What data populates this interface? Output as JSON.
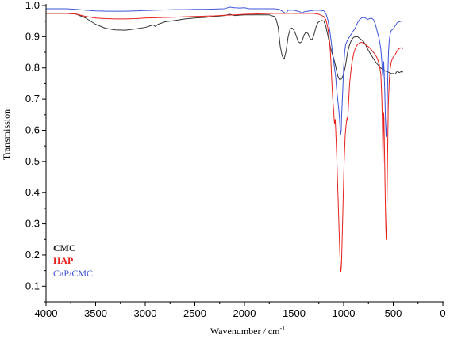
{
  "chart_data": {
    "type": "line",
    "title": "",
    "xlabel": "Wavenumber / cm-1",
    "xlabel_main": "Wavenumber / cm",
    "xlabel_sup": "-1",
    "ylabel": "Transmission",
    "xlim": [
      4000,
      0
    ],
    "ylim": [
      0.05,
      1.0
    ],
    "x_reversed": true,
    "grid": false,
    "legend_position": "lower-left",
    "x_ticks": [
      4000,
      3500,
      3000,
      2500,
      2000,
      1500,
      1000,
      500,
      0
    ],
    "x_tick_labels": [
      "4000",
      "3500",
      "3000",
      "2500",
      "2000",
      "1500",
      "1000",
      "500",
      "0"
    ],
    "y_ticks": [
      0.1,
      0.2,
      0.3,
      0.4,
      0.5,
      0.6,
      0.7,
      0.8,
      0.9,
      1.0
    ],
    "y_tick_labels": [
      "0.1",
      "0.2",
      "0.3",
      "0.4",
      "0.5",
      "0.6",
      "0.7",
      "0.8",
      "0.9",
      "1.0"
    ],
    "series": [
      {
        "name": "CMC",
        "color": "#333333",
        "points": [
          [
            4000,
            0.975
          ],
          [
            3800,
            0.975
          ],
          [
            3700,
            0.973
          ],
          [
            3600,
            0.96
          ],
          [
            3500,
            0.94
          ],
          [
            3400,
            0.927
          ],
          [
            3300,
            0.922
          ],
          [
            3200,
            0.921
          ],
          [
            3100,
            0.925
          ],
          [
            3000,
            0.93
          ],
          [
            2950,
            0.935
          ],
          [
            2920,
            0.938
          ],
          [
            2900,
            0.933
          ],
          [
            2870,
            0.94
          ],
          [
            2800,
            0.948
          ],
          [
            2700,
            0.952
          ],
          [
            2600,
            0.957
          ],
          [
            2500,
            0.96
          ],
          [
            2400,
            0.962
          ],
          [
            2300,
            0.965
          ],
          [
            2200,
            0.968
          ],
          [
            2150,
            0.972
          ],
          [
            2100,
            0.968
          ],
          [
            2000,
            0.97
          ],
          [
            1900,
            0.97
          ],
          [
            1800,
            0.97
          ],
          [
            1750,
            0.97
          ],
          [
            1700,
            0.965
          ],
          [
            1680,
            0.955
          ],
          [
            1660,
            0.93
          ],
          [
            1640,
            0.87
          ],
          [
            1620,
            0.838
          ],
          [
            1600,
            0.828
          ],
          [
            1580,
            0.855
          ],
          [
            1560,
            0.9
          ],
          [
            1540,
            0.925
          ],
          [
            1520,
            0.928
          ],
          [
            1500,
            0.92
          ],
          [
            1480,
            0.905
          ],
          [
            1460,
            0.885
          ],
          [
            1440,
            0.88
          ],
          [
            1420,
            0.885
          ],
          [
            1400,
            0.905
          ],
          [
            1380,
            0.915
          ],
          [
            1360,
            0.91
          ],
          [
            1340,
            0.895
          ],
          [
            1320,
            0.89
          ],
          [
            1300,
            0.905
          ],
          [
            1280,
            0.93
          ],
          [
            1260,
            0.945
          ],
          [
            1240,
            0.95
          ],
          [
            1220,
            0.952
          ],
          [
            1200,
            0.95
          ],
          [
            1180,
            0.935
          ],
          [
            1160,
            0.905
          ],
          [
            1140,
            0.875
          ],
          [
            1120,
            0.85
          ],
          [
            1100,
            0.83
          ],
          [
            1080,
            0.805
          ],
          [
            1060,
            0.775
          ],
          [
            1040,
            0.762
          ],
          [
            1020,
            0.765
          ],
          [
            1000,
            0.78
          ],
          [
            980,
            0.81
          ],
          [
            960,
            0.85
          ],
          [
            940,
            0.875
          ],
          [
            920,
            0.89
          ],
          [
            900,
            0.898
          ],
          [
            880,
            0.9
          ],
          [
            860,
            0.9
          ],
          [
            840,
            0.895
          ],
          [
            820,
            0.89
          ],
          [
            800,
            0.885
          ],
          [
            780,
            0.875
          ],
          [
            760,
            0.862
          ],
          [
            740,
            0.85
          ],
          [
            720,
            0.84
          ],
          [
            700,
            0.83
          ],
          [
            680,
            0.82
          ],
          [
            660,
            0.812
          ],
          [
            640,
            0.805
          ],
          [
            620,
            0.798
          ],
          [
            600,
            0.795
          ],
          [
            580,
            0.79
          ],
          [
            560,
            0.788
          ],
          [
            540,
            0.785
          ],
          [
            520,
            0.782
          ],
          [
            500,
            0.782
          ],
          [
            480,
            0.78
          ],
          [
            460,
            0.79
          ],
          [
            440,
            0.785
          ],
          [
            420,
            0.788
          ],
          [
            400,
            0.787
          ]
        ]
      },
      {
        "name": "HAP",
        "color": "#e8201c",
        "points": [
          [
            4000,
            0.975
          ],
          [
            3800,
            0.975
          ],
          [
            3700,
            0.973
          ],
          [
            3600,
            0.965
          ],
          [
            3500,
            0.96
          ],
          [
            3400,
            0.958
          ],
          [
            3300,
            0.957
          ],
          [
            3200,
            0.957
          ],
          [
            3100,
            0.958
          ],
          [
            3000,
            0.96
          ],
          [
            2900,
            0.961
          ],
          [
            2800,
            0.962
          ],
          [
            2700,
            0.963
          ],
          [
            2600,
            0.964
          ],
          [
            2500,
            0.965
          ],
          [
            2400,
            0.966
          ],
          [
            2300,
            0.967
          ],
          [
            2200,
            0.969
          ],
          [
            2100,
            0.97
          ],
          [
            2000,
            0.972
          ],
          [
            1900,
            0.973
          ],
          [
            1800,
            0.974
          ],
          [
            1700,
            0.975
          ],
          [
            1600,
            0.975
          ],
          [
            1500,
            0.975
          ],
          [
            1400,
            0.975
          ],
          [
            1300,
            0.975
          ],
          [
            1250,
            0.972
          ],
          [
            1200,
            0.965
          ],
          [
            1180,
            0.955
          ],
          [
            1160,
            0.93
          ],
          [
            1140,
            0.88
          ],
          [
            1130,
            0.83
          ],
          [
            1120,
            0.76
          ],
          [
            1110,
            0.7
          ],
          [
            1100,
            0.66
          ],
          [
            1095,
            0.63
          ],
          [
            1090,
            0.62
          ],
          [
            1085,
            0.635
          ],
          [
            1080,
            0.6
          ],
          [
            1070,
            0.52
          ],
          [
            1060,
            0.42
          ],
          [
            1050,
            0.32
          ],
          [
            1040,
            0.22
          ],
          [
            1033,
            0.16
          ],
          [
            1028,
            0.145
          ],
          [
            1022,
            0.17
          ],
          [
            1015,
            0.25
          ],
          [
            1005,
            0.38
          ],
          [
            995,
            0.5
          ],
          [
            985,
            0.58
          ],
          [
            975,
            0.62
          ],
          [
            965,
            0.64
          ],
          [
            962,
            0.632
          ],
          [
            958,
            0.64
          ],
          [
            950,
            0.69
          ],
          [
            940,
            0.75
          ],
          [
            920,
            0.81
          ],
          [
            900,
            0.845
          ],
          [
            880,
            0.865
          ],
          [
            860,
            0.875
          ],
          [
            840,
            0.88
          ],
          [
            820,
            0.882
          ],
          [
            800,
            0.88
          ],
          [
            780,
            0.875
          ],
          [
            760,
            0.87
          ],
          [
            740,
            0.865
          ],
          [
            720,
            0.858
          ],
          [
            700,
            0.85
          ],
          [
            680,
            0.842
          ],
          [
            660,
            0.83
          ],
          [
            640,
            0.81
          ],
          [
            625,
            0.78
          ],
          [
            615,
            0.7
          ],
          [
            608,
            0.6
          ],
          [
            603,
            0.495
          ],
          [
            600,
            0.6
          ],
          [
            597,
            0.655
          ],
          [
            594,
            0.64
          ],
          [
            590,
            0.57
          ],
          [
            585,
            0.47
          ],
          [
            580,
            0.37
          ],
          [
            575,
            0.29
          ],
          [
            571,
            0.25
          ],
          [
            567,
            0.28
          ],
          [
            562,
            0.4
          ],
          [
            556,
            0.55
          ],
          [
            550,
            0.68
          ],
          [
            540,
            0.76
          ],
          [
            530,
            0.8
          ],
          [
            520,
            0.82
          ],
          [
            500,
            0.835
          ],
          [
            480,
            0.843
          ],
          [
            460,
            0.855
          ],
          [
            440,
            0.862
          ],
          [
            420,
            0.865
          ],
          [
            400,
            0.862
          ]
        ]
      },
      {
        "name": "CaP/CMC",
        "color": "#3e55d9",
        "points": [
          [
            4000,
            0.99
          ],
          [
            3800,
            0.99
          ],
          [
            3700,
            0.988
          ],
          [
            3600,
            0.985
          ],
          [
            3500,
            0.983
          ],
          [
            3400,
            0.982
          ],
          [
            3300,
            0.982
          ],
          [
            3200,
            0.982
          ],
          [
            3100,
            0.983
          ],
          [
            3000,
            0.984
          ],
          [
            2900,
            0.985
          ],
          [
            2800,
            0.986
          ],
          [
            2700,
            0.987
          ],
          [
            2600,
            0.987
          ],
          [
            2500,
            0.988
          ],
          [
            2400,
            0.988
          ],
          [
            2300,
            0.989
          ],
          [
            2200,
            0.99
          ],
          [
            2150,
            0.995
          ],
          [
            2100,
            0.993
          ],
          [
            2050,
            0.992
          ],
          [
            2000,
            0.993
          ],
          [
            1950,
            0.99
          ],
          [
            1900,
            0.99
          ],
          [
            1800,
            0.99
          ],
          [
            1700,
            0.99
          ],
          [
            1650,
            0.988
          ],
          [
            1600,
            0.978
          ],
          [
            1580,
            0.975
          ],
          [
            1560,
            0.985
          ],
          [
            1500,
            0.985
          ],
          [
            1440,
            0.98
          ],
          [
            1420,
            0.975
          ],
          [
            1400,
            0.98
          ],
          [
            1300,
            0.985
          ],
          [
            1250,
            0.985
          ],
          [
            1200,
            0.983
          ],
          [
            1180,
            0.975
          ],
          [
            1160,
            0.955
          ],
          [
            1140,
            0.92
          ],
          [
            1120,
            0.87
          ],
          [
            1100,
            0.82
          ],
          [
            1080,
            0.77
          ],
          [
            1070,
            0.73
          ],
          [
            1060,
            0.7
          ],
          [
            1050,
            0.67
          ],
          [
            1040,
            0.63
          ],
          [
            1035,
            0.6
          ],
          [
            1030,
            0.585
          ],
          [
            1025,
            0.6
          ],
          [
            1020,
            0.65
          ],
          [
            1010,
            0.72
          ],
          [
            1000,
            0.8
          ],
          [
            990,
            0.85
          ],
          [
            980,
            0.875
          ],
          [
            960,
            0.89
          ],
          [
            940,
            0.9
          ],
          [
            920,
            0.91
          ],
          [
            900,
            0.92
          ],
          [
            880,
            0.93
          ],
          [
            860,
            0.945
          ],
          [
            840,
            0.955
          ],
          [
            820,
            0.96
          ],
          [
            800,
            0.962
          ],
          [
            780,
            0.96
          ],
          [
            760,
            0.955
          ],
          [
            740,
            0.958
          ],
          [
            720,
            0.96
          ],
          [
            700,
            0.955
          ],
          [
            680,
            0.94
          ],
          [
            660,
            0.915
          ],
          [
            640,
            0.89
          ],
          [
            625,
            0.86
          ],
          [
            615,
            0.82
          ],
          [
            608,
            0.78
          ],
          [
            603,
            0.77
          ],
          [
            600,
            0.8
          ],
          [
            597,
            0.82
          ],
          [
            592,
            0.79
          ],
          [
            585,
            0.72
          ],
          [
            578,
            0.63
          ],
          [
            572,
            0.58
          ],
          [
            567,
            0.6
          ],
          [
            562,
            0.68
          ],
          [
            555,
            0.77
          ],
          [
            548,
            0.85
          ],
          [
            540,
            0.89
          ],
          [
            530,
            0.91
          ],
          [
            520,
            0.92
          ],
          [
            500,
            0.925
          ],
          [
            480,
            0.935
          ],
          [
            460,
            0.945
          ],
          [
            440,
            0.948
          ],
          [
            420,
            0.95
          ],
          [
            400,
            0.95
          ]
        ]
      }
    ]
  }
}
